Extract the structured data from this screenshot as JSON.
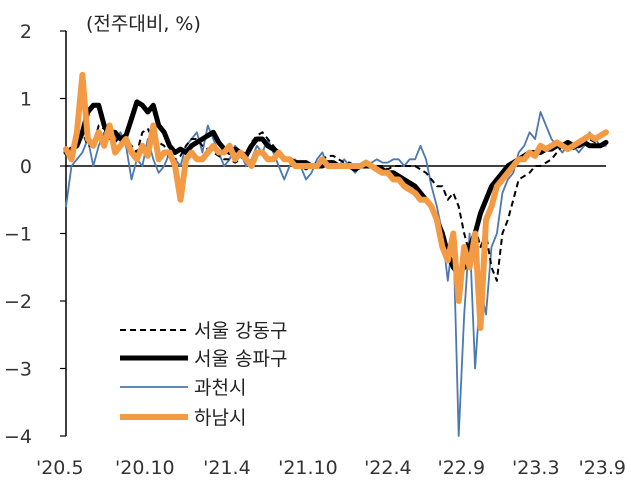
{
  "chart_data": {
    "type": "line",
    "unit_label": "(전주대비, %)",
    "ylim": [
      -4,
      2
    ],
    "yticks": [
      2,
      1,
      0,
      -1,
      -2,
      -3,
      -4
    ],
    "xlim": [
      0,
      100
    ],
    "xticks": [
      {
        "pos": 0,
        "label": "'20.5"
      },
      {
        "pos": 14.6,
        "label": "'20.10"
      },
      {
        "pos": 29.8,
        "label": "'21.4"
      },
      {
        "pos": 44.8,
        "label": "'21.10"
      },
      {
        "pos": 59.6,
        "label": "'22.4"
      },
      {
        "pos": 73.2,
        "label": "'22.9"
      },
      {
        "pos": 87.0,
        "label": "'23.3"
      },
      {
        "pos": 100,
        "label": "'23.9"
      }
    ],
    "legend_position": "bottom-left",
    "series": [
      {
        "name": "서울 강동구",
        "color": "#000000",
        "style": "dashed",
        "values": [
          0.25,
          0.15,
          0.35,
          0.5,
          0.3,
          0.3,
          0.6,
          0.55,
          0.4,
          0.35,
          0.45,
          0.4,
          0.3,
          0.2,
          0.5,
          0.55,
          0.4,
          0.35,
          0.3,
          0.1,
          0.1,
          0.15,
          0.3,
          0.4,
          0.4,
          0.3,
          0.25,
          0.2,
          0.15,
          0.1,
          0.1,
          0.05,
          0.1,
          0.2,
          0.35,
          0.45,
          0.5,
          0.4,
          0.3,
          0.2,
          0.15,
          0.1,
          0.05,
          0.0,
          -0.05,
          0.0,
          0.05,
          0.1,
          0.15,
          0.15,
          0.1,
          0.05,
          0.05,
          0.0,
          0.0,
          0.0,
          0.0,
          0.0,
          0.0,
          -0.05,
          0.0,
          0.0,
          0.0,
          0.0,
          0.0,
          -0.05,
          -0.1,
          -0.2,
          -0.3,
          -0.3,
          -0.5,
          -0.4,
          -0.6,
          -1.0,
          -1.3,
          -0.9,
          -1.2,
          -1.0,
          -1.5,
          -1.7,
          -1.0,
          -0.8,
          -0.5,
          -0.2,
          -0.15,
          -0.1,
          0.0,
          0.0,
          0.05,
          0.1,
          0.2,
          0.3,
          0.35,
          0.25,
          0.3,
          0.35,
          0.4,
          0.35,
          0.45,
          0.5
        ]
      },
      {
        "name": "서울 송파구",
        "color": "#000000",
        "style": "bold",
        "values": [
          0.2,
          0.25,
          0.3,
          0.5,
          0.8,
          0.9,
          0.9,
          0.6,
          0.5,
          0.5,
          0.4,
          0.45,
          0.7,
          0.95,
          0.9,
          0.8,
          0.9,
          0.6,
          0.5,
          0.3,
          0.2,
          0.25,
          0.2,
          0.3,
          0.35,
          0.4,
          0.45,
          0.5,
          0.35,
          0.25,
          0.2,
          0.25,
          0.2,
          0.15,
          0.3,
          0.4,
          0.4,
          0.3,
          0.25,
          0.2,
          0.1,
          0.1,
          0.05,
          0.05,
          0.05,
          0.0,
          0.0,
          0.0,
          0.05,
          0.05,
          0.0,
          0.0,
          0.0,
          -0.05,
          0.0,
          0.0,
          0.0,
          -0.05,
          -0.05,
          -0.1,
          -0.1,
          -0.15,
          -0.2,
          -0.25,
          -0.3,
          -0.4,
          -0.5,
          -0.6,
          -0.8,
          -1.0,
          -1.3,
          -1.5,
          -1.6,
          -1.5,
          -1.2,
          -1.0,
          -0.7,
          -0.5,
          -0.3,
          -0.2,
          -0.1,
          0.0,
          0.05,
          0.1,
          0.15,
          0.2,
          0.2,
          0.2,
          0.25,
          0.25,
          0.3,
          0.3,
          0.35,
          0.3,
          0.3,
          0.35,
          0.3,
          0.3,
          0.3,
          0.35
        ]
      },
      {
        "name": "과천시",
        "color": "#4a78b0",
        "style": "thin",
        "values": [
          -0.6,
          0.0,
          0.1,
          0.2,
          0.4,
          0.0,
          0.3,
          0.5,
          0.5,
          0.4,
          0.5,
          0.3,
          -0.2,
          0.1,
          0.0,
          0.4,
          0.1,
          -0.1,
          0.0,
          0.2,
          0.1,
          0.0,
          0.3,
          0.4,
          0.5,
          0.2,
          0.6,
          0.4,
          0.2,
          0.0,
          0.1,
          0.3,
          0.2,
          0.0,
          0.1,
          0.3,
          0.2,
          0.4,
          0.2,
          0.0,
          -0.2,
          0.0,
          0.1,
          0.0,
          -0.2,
          -0.1,
          0.1,
          0.2,
          0.0,
          0.0,
          0.0,
          0.1,
          0.0,
          -0.1,
          0.0,
          0.0,
          0.05,
          0.1,
          0.05,
          0.05,
          0.1,
          0.1,
          0.0,
          0.1,
          0.1,
          0.3,
          0.1,
          -0.3,
          -0.6,
          -1.0,
          -1.7,
          -1.0,
          -4.0,
          -2.2,
          -1.0,
          -3.0,
          -1.8,
          -2.2,
          -1.2,
          -1.0,
          -0.4,
          -0.2,
          -0.1,
          0.2,
          0.3,
          0.5,
          0.4,
          0.8,
          0.6,
          0.4,
          0.3,
          0.2,
          0.3,
          0.3,
          0.2,
          0.3,
          0.5,
          0.4,
          0.3,
          0.3
        ]
      },
      {
        "name": "하남시",
        "color": "#f39a45",
        "style": "bold",
        "values": [
          0.25,
          0.1,
          0.5,
          1.35,
          0.4,
          0.3,
          0.5,
          0.3,
          0.6,
          0.2,
          0.3,
          0.4,
          0.2,
          0.1,
          0.3,
          0.15,
          0.6,
          0.1,
          0.2,
          0.2,
          0.0,
          -0.5,
          0.1,
          0.2,
          0.1,
          0.1,
          0.2,
          0.3,
          0.2,
          0.2,
          0.3,
          0.1,
          0.2,
          0.1,
          0.0,
          0.2,
          0.2,
          0.1,
          0.1,
          0.2,
          0.1,
          0.1,
          0.0,
          0.0,
          0.0,
          0.0,
          0.0,
          0.1,
          0.0,
          0.0,
          0.0,
          0.0,
          0.0,
          0.0,
          0.0,
          0.05,
          0.0,
          -0.05,
          -0.1,
          -0.1,
          -0.2,
          -0.2,
          -0.3,
          -0.35,
          -0.4,
          -0.5,
          -0.5,
          -0.6,
          -0.8,
          -1.2,
          -1.4,
          -1.0,
          -2.0,
          -1.2,
          -1.5,
          -1.0,
          -2.4,
          -0.8,
          -0.6,
          -0.3,
          -0.2,
          -0.1,
          0.0,
          0.1,
          0.1,
          0.2,
          0.15,
          0.3,
          0.25,
          0.3,
          0.35,
          0.3,
          0.25,
          0.3,
          0.35,
          0.4,
          0.45,
          0.4,
          0.45,
          0.5
        ]
      }
    ]
  }
}
